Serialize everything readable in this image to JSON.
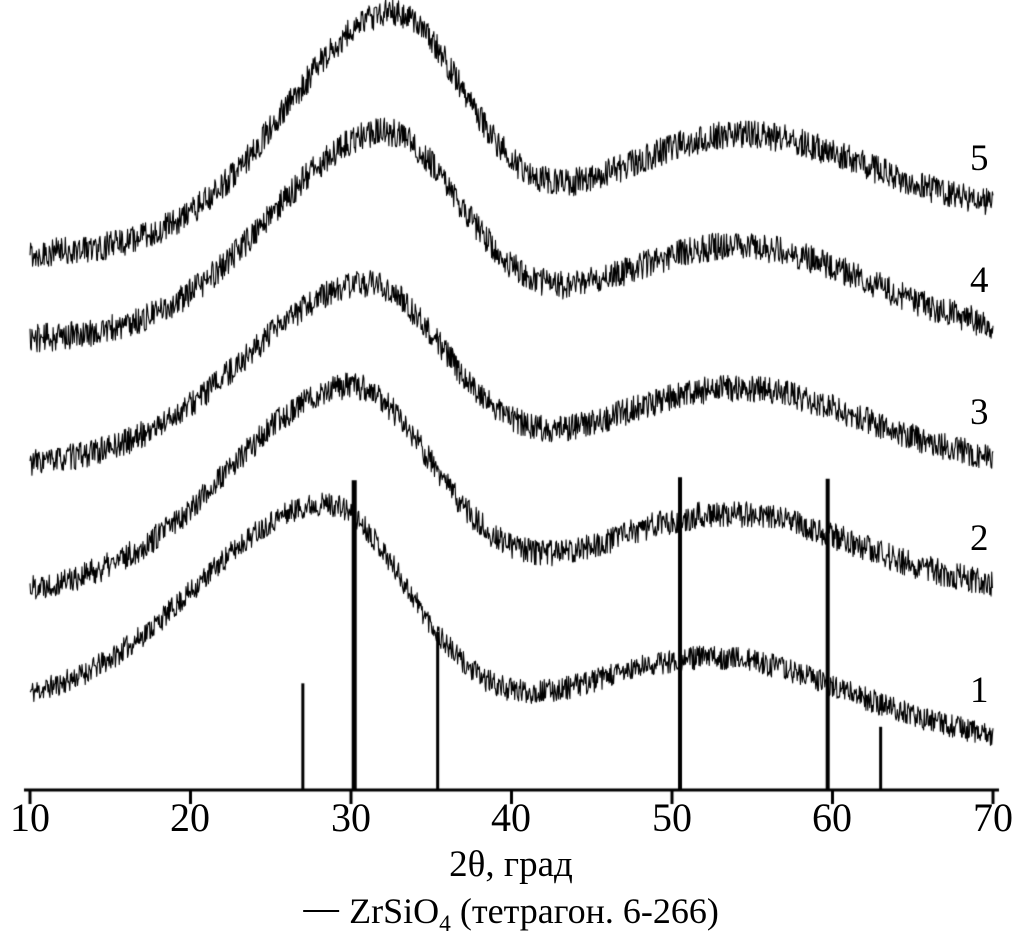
{
  "figure": {
    "background": "#ffffff",
    "ink": "#000000"
  },
  "chart_data": {
    "type": "line",
    "title": "",
    "xlabel": "2θ, град",
    "ylabel": "",
    "x_range": [
      10,
      70
    ],
    "x_ticks": [
      10,
      20,
      30,
      40,
      50,
      60,
      70
    ],
    "x_tick_labels": [
      "10",
      "20",
      "30",
      "40",
      "50",
      "60",
      "70"
    ],
    "grid": false,
    "description": "Five stacked amorphous XRD patterns (labels 1-5, bottom to top) with a broad halo near 2θ≈28-33° and a second broad hump near 2θ≈50-58°, plus vertical reference lines of tetragonal ZrSiO4 (card 6-266).",
    "curves": [
      {
        "name": "1",
        "base_left": 0.105,
        "base_right": 0.06,
        "peak": {
          "center": 28.5,
          "amp": 0.27,
          "sigma_l": 8.0,
          "sigma_r": 5.0
        },
        "hump": {
          "center": 53.0,
          "amp": 0.095,
          "sigma": 8.0
        },
        "noise": 0.015,
        "seed": 11
      },
      {
        "name": "2",
        "base_left": 0.25,
        "base_right": 0.25,
        "peak": {
          "center": 30.0,
          "amp": 0.26,
          "sigma_l": 7.5,
          "sigma_r": 5.0
        },
        "hump": {
          "center": 53.5,
          "amp": 0.1,
          "sigma": 8.0
        },
        "noise": 0.017,
        "seed": 22
      },
      {
        "name": "3",
        "base_left": 0.41,
        "base_right": 0.408,
        "peak": {
          "center": 31.0,
          "amp": 0.23,
          "sigma_l": 7.5,
          "sigma_r": 4.8
        },
        "hump": {
          "center": 54.0,
          "amp": 0.1,
          "sigma": 8.0
        },
        "noise": 0.017,
        "seed": 33
      },
      {
        "name": "4",
        "base_left": 0.57,
        "base_right": 0.568,
        "peak": {
          "center": 32.0,
          "amp": 0.26,
          "sigma_l": 7.0,
          "sigma_r": 4.8
        },
        "hump": {
          "center": 54.0,
          "amp": 0.12,
          "sigma": 8.5
        },
        "noise": 0.018,
        "seed": 44
      },
      {
        "name": "5",
        "base_left": 0.678,
        "base_right": 0.728,
        "peak": {
          "center": 32.5,
          "amp": 0.285,
          "sigma_l": 6.5,
          "sigma_r": 4.5
        },
        "hump": {
          "center": 54.0,
          "amp": 0.115,
          "sigma": 8.0
        },
        "noise": 0.018,
        "seed": 55
      }
    ],
    "reference_lines": {
      "name": "ZrSiO4 (тетрагон. 6-266)",
      "lines": [
        {
          "two_theta": 27.0,
          "height": 0.135,
          "width": 3
        },
        {
          "two_theta": 30.2,
          "height": 0.392,
          "width": 5
        },
        {
          "two_theta": 35.4,
          "height": 0.2,
          "width": 3
        },
        {
          "two_theta": 50.5,
          "height": 0.396,
          "width": 4
        },
        {
          "two_theta": 59.7,
          "height": 0.394,
          "width": 4
        },
        {
          "two_theta": 63.0,
          "height": 0.08,
          "width": 3
        }
      ]
    },
    "legend": {
      "marker": "line",
      "formula_main": "ZrSiO",
      "formula_sub": "4",
      "suffix": " (тетрагон. 6-266)"
    }
  }
}
